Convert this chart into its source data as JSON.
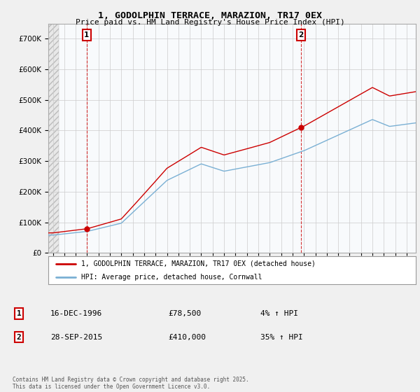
{
  "title_line1": "1, GODOLPHIN TERRACE, MARAZION, TR17 0EX",
  "title_line2": "Price paid vs. HM Land Registry's House Price Index (HPI)",
  "xlim_start": 1993.6,
  "xlim_end": 2025.8,
  "ylim_min": 0,
  "ylim_max": 750000,
  "sale1_year": 1996.96,
  "sale1_price": 78500,
  "sale2_year": 2015.74,
  "sale2_price": 410000,
  "hpi_color": "#7ab0d4",
  "price_color": "#cc0000",
  "legend_label1": "1, GODOLPHIN TERRACE, MARAZION, TR17 0EX (detached house)",
  "legend_label2": "HPI: Average price, detached house, Cornwall",
  "annotation1_label": "1",
  "annotation1_date": "16-DEC-1996",
  "annotation1_price": "£78,500",
  "annotation1_hpi": "4% ↑ HPI",
  "annotation2_label": "2",
  "annotation2_date": "28-SEP-2015",
  "annotation2_price": "£410,000",
  "annotation2_hpi": "35% ↑ HPI",
  "copyright_text": "Contains HM Land Registry data © Crown copyright and database right 2025.\nThis data is licensed under the Open Government Licence v3.0.",
  "background_color": "#f0f0f0",
  "plot_bg_color": "#ffffff",
  "hatch_bg": "#e8e8e8",
  "hpi_bg_color": "#e8f0f8",
  "hatch_end_year": 1994.5
}
